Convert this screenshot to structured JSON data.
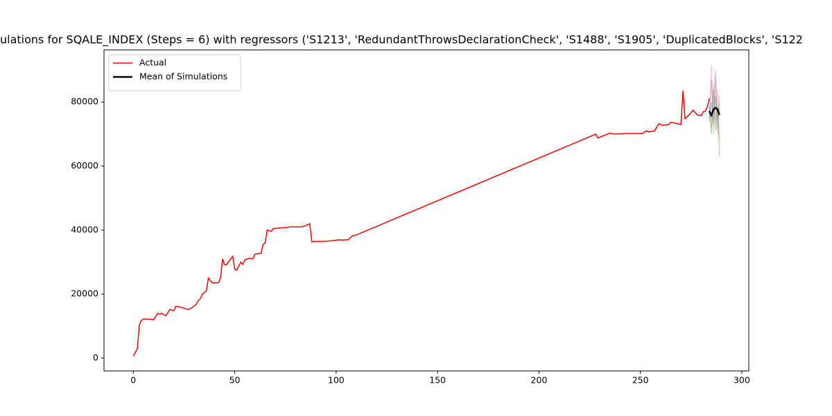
{
  "chart_data": {
    "type": "line",
    "title": "ulations for SQALE_INDEX (Steps = 6) with regressors ('S1213', 'RedundantThrowsDeclarationCheck', 'S1488', 'S1905', 'DuplicatedBlocks', 'S122",
    "xlim": [
      -14.45,
      303.45
    ],
    "ylim": [
      -4000,
      96300
    ],
    "xticks": [
      0,
      50,
      100,
      150,
      200,
      250,
      300
    ],
    "yticks": [
      0,
      20000,
      40000,
      60000,
      80000
    ],
    "legend": "upper left",
    "series": [
      {
        "color": "#e377c2",
        "x": [
          284,
          285,
          286,
          287,
          288,
          289
        ],
        "values": [
          75000,
          91500,
          70000,
          88000,
          72000,
          80000
        ]
      },
      {
        "color": "#ff7f0e",
        "x": [
          284,
          285,
          286,
          287,
          288,
          289
        ],
        "values": [
          79000,
          72000,
          86000,
          74000,
          84000,
          68000
        ]
      },
      {
        "color": "#1f77b4",
        "x": [
          284,
          285,
          286,
          287,
          288,
          289
        ],
        "values": [
          76000,
          80000,
          73000,
          82000,
          75000,
          78000
        ]
      },
      {
        "color": "#2ca02c",
        "x": [
          284,
          285,
          286,
          287,
          288,
          289
        ],
        "values": [
          78000,
          70000,
          84000,
          71000,
          79000,
          63000
        ]
      },
      {
        "color": "#9467bd",
        "x": [
          284,
          285,
          286,
          287,
          288,
          289
        ],
        "values": [
          74000,
          87000,
          75000,
          90000,
          70000,
          82000
        ]
      },
      {
        "name": "Actual",
        "color": "#ff0000",
        "width": 1.5,
        "x": [
          0,
          2,
          3,
          4,
          5,
          8,
          10,
          12,
          13,
          14,
          16,
          18,
          20,
          21,
          23,
          27,
          29,
          31,
          32,
          33,
          34,
          36,
          37,
          39,
          42,
          43,
          44,
          45,
          46,
          48,
          49,
          50,
          51,
          53,
          54,
          55,
          57,
          59,
          60,
          63,
          64,
          65,
          66,
          68,
          69,
          75,
          78,
          83,
          85,
          87,
          88,
          95,
          100,
          101,
          103,
          106,
          108,
          110,
          228,
          229,
          235,
          237,
          240,
          243,
          251,
          253,
          254,
          257,
          259,
          261,
          264,
          265,
          270,
          271,
          272,
          274,
          276,
          278,
          280,
          281,
          282,
          283,
          284
        ],
        "values": [
          600,
          3000,
          10500,
          11800,
          12200,
          12200,
          12000,
          14000,
          13800,
          14000,
          13200,
          15200,
          14800,
          16200,
          16000,
          15200,
          15800,
          16800,
          18000,
          18500,
          20000,
          21000,
          25000,
          23500,
          23600,
          25000,
          31000,
          29200,
          29200,
          31000,
          31800,
          27800,
          27500,
          30000,
          29300,
          30700,
          31200,
          31000,
          32500,
          32800,
          35500,
          36000,
          40000,
          39600,
          40500,
          40800,
          41000,
          41000,
          41400,
          42000,
          36400,
          36500,
          36800,
          37000,
          36900,
          37000,
          38200,
          38500,
          70000,
          68800,
          70300,
          70000,
          70100,
          70200,
          70200,
          71000,
          70700,
          71000,
          73200,
          72800,
          73000,
          73700,
          73000,
          83600,
          74800,
          76000,
          77500,
          76000,
          75800,
          77000,
          77200,
          78500,
          81200
        ]
      },
      {
        "name": "Mean of Simulations",
        "color": "#000000",
        "width": 2.5,
        "x": [
          284,
          285,
          286,
          287,
          288,
          289
        ],
        "values": [
          77200,
          75900,
          77600,
          78200,
          77800,
          76000
        ]
      }
    ]
  }
}
